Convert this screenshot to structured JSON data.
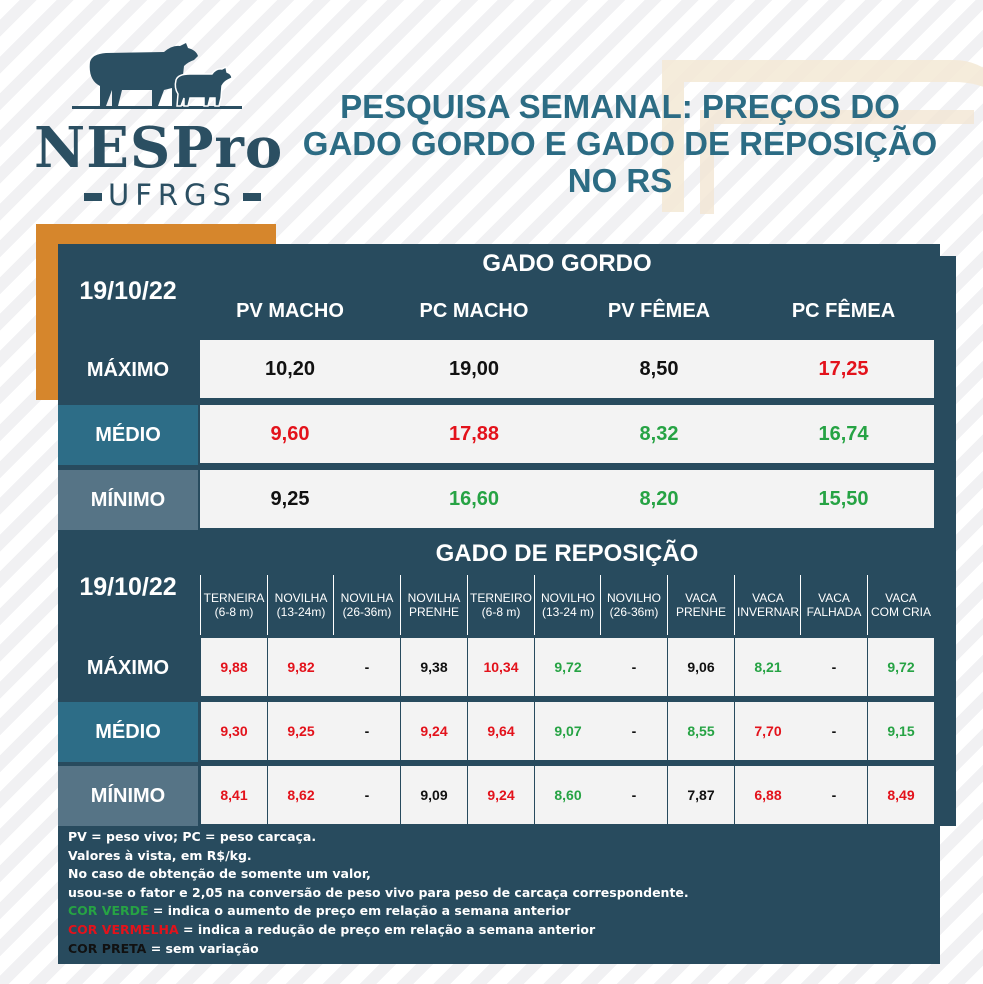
{
  "logo": {
    "name": "NESPro",
    "sub": "UFRGS"
  },
  "title": {
    "line1": "PESQUISA SEMANAL: PREÇOS DO",
    "line2": "GADO GORDO E GADO DE REPOSIÇÃO",
    "line3": "NO RS"
  },
  "gordo": {
    "date": "19/10/22",
    "header": "GADO GORDO",
    "columns": [
      "PV MACHO",
      "PC MACHO",
      "PV FÊMEA",
      "PC FÊMEA"
    ],
    "rows": [
      {
        "label": "MÁXIMO",
        "values": [
          {
            "v": "10,20",
            "c": "black"
          },
          {
            "v": "19,00",
            "c": "black"
          },
          {
            "v": "8,50",
            "c": "black"
          },
          {
            "v": "17,25",
            "c": "red"
          }
        ]
      },
      {
        "label": "MÉDIO",
        "values": [
          {
            "v": "9,60",
            "c": "red"
          },
          {
            "v": "17,88",
            "c": "red"
          },
          {
            "v": "8,32",
            "c": "green"
          },
          {
            "v": "16,74",
            "c": "green"
          }
        ]
      },
      {
        "label": "MÍNIMO",
        "values": [
          {
            "v": "9,25",
            "c": "black"
          },
          {
            "v": "16,60",
            "c": "green"
          },
          {
            "v": "8,20",
            "c": "green"
          },
          {
            "v": "15,50",
            "c": "green"
          }
        ]
      }
    ]
  },
  "reposicao": {
    "date": "19/10/22",
    "header": "GADO DE REPOSIÇÃO",
    "columns": [
      [
        "TERNEIRA",
        "(6-8 m)"
      ],
      [
        "NOVILHA",
        "(13-24m)"
      ],
      [
        "NOVILHA",
        "(26-36m)"
      ],
      [
        "NOVILHA",
        "PRENHE"
      ],
      [
        "TERNEIRO",
        "(6-8 m)"
      ],
      [
        "NOVILHO",
        "(13-24 m)"
      ],
      [
        "NOVILHO",
        "(26-36m)"
      ],
      [
        "VACA",
        "PRENHE"
      ],
      [
        "VACA",
        "INVERNAR"
      ],
      [
        "VACA",
        "FALHADA"
      ],
      [
        "VACA",
        "COM CRIA"
      ]
    ],
    "rows": [
      {
        "label": "MÁXIMO",
        "values": [
          {
            "v": "9,88",
            "c": "red"
          },
          {
            "v": "9,82",
            "c": "red"
          },
          {
            "v": "-",
            "c": "black"
          },
          {
            "v": "9,38",
            "c": "black"
          },
          {
            "v": "10,34",
            "c": "red"
          },
          {
            "v": "9,72",
            "c": "green"
          },
          {
            "v": "-",
            "c": "black"
          },
          {
            "v": "9,06",
            "c": "black"
          },
          {
            "v": "8,21",
            "c": "green"
          },
          {
            "v": "-",
            "c": "black"
          },
          {
            "v": "9,72",
            "c": "green"
          }
        ]
      },
      {
        "label": "MÉDIO",
        "values": [
          {
            "v": "9,30",
            "c": "red"
          },
          {
            "v": "9,25",
            "c": "red"
          },
          {
            "v": "-",
            "c": "black"
          },
          {
            "v": "9,24",
            "c": "red"
          },
          {
            "v": "9,64",
            "c": "red"
          },
          {
            "v": "9,07",
            "c": "green"
          },
          {
            "v": "-",
            "c": "black"
          },
          {
            "v": "8,55",
            "c": "green"
          },
          {
            "v": "7,70",
            "c": "red"
          },
          {
            "v": "-",
            "c": "black"
          },
          {
            "v": "9,15",
            "c": "green"
          }
        ]
      },
      {
        "label": "MÍNIMO",
        "values": [
          {
            "v": "8,41",
            "c": "red"
          },
          {
            "v": "8,62",
            "c": "red"
          },
          {
            "v": "-",
            "c": "black"
          },
          {
            "v": "9,09",
            "c": "black"
          },
          {
            "v": "9,24",
            "c": "red"
          },
          {
            "v": "8,60",
            "c": "green"
          },
          {
            "v": "-",
            "c": "black"
          },
          {
            "v": "7,87",
            "c": "black"
          },
          {
            "v": "6,88",
            "c": "red"
          },
          {
            "v": "-",
            "c": "black"
          },
          {
            "v": "8,49",
            "c": "red"
          }
        ]
      }
    ]
  },
  "notes": {
    "l1": "PV = peso vivo; PC = peso carcaça.",
    "l2": "Valores à vista, em R$/kg.",
    "l3": "No caso de obtenção de somente um valor,",
    "l4": "usou-se o fator e 2,05 na conversão de peso vivo para peso de carcaça correspondente.",
    "green_label": "COR VERDE",
    "green_text": " = indica o aumento de preço em relação a semana anterior",
    "red_label": "COR VERMELHA",
    "red_text": " = indica a redução de preço em relação a semana anterior",
    "black_label": "COR PRETA",
    "black_text": " = sem variação"
  },
  "colors": {
    "navy": "#284b5e",
    "teal": "#2d6d87",
    "slate": "#567486",
    "orange": "#d6862c",
    "title": "#2c6c84",
    "red": "#e3121b",
    "green": "#26a344"
  }
}
